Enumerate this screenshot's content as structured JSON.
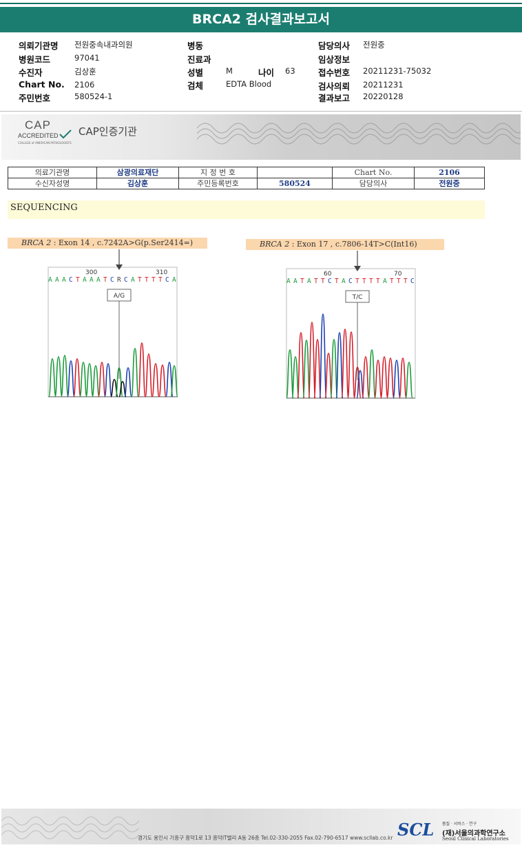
{
  "header": {
    "title": "BRCA2 검사결과보고서"
  },
  "info": {
    "institution_label": "의뢰기관명",
    "institution_value": "전원중속내과의원",
    "hospital_code_label": "병원코드",
    "hospital_code_value": "97041",
    "patient_label": "수진자",
    "patient_value": "김상훈",
    "chart_no_label": "Chart No.",
    "chart_no_value": "2106",
    "resident_no_label": "주민번호",
    "resident_no_value": "580524-1",
    "ward_label": "병동",
    "dept_label": "진료과",
    "sex_label": "성별",
    "sex_value": "M",
    "age_label": "나이",
    "age_value": "63",
    "specimen_label": "검체",
    "specimen_value": "EDTA Blood",
    "doctor_label": "담당의사",
    "doctor_value": "전원중",
    "clinical_label": "임상정보",
    "receipt_label": "접수번호",
    "receipt_value": "20211231-75032",
    "request_label": "검사의뢰",
    "request_value": "20211231",
    "report_label": "결과보고",
    "report_value": "20220128"
  },
  "cap": {
    "logo_text": "CAP",
    "accredited": "ACCREDITED",
    "college": "COLLEGE of AMERICAN PATHOLOGISTS",
    "title": "CAP인증기관"
  },
  "patient_table": {
    "r1": [
      "의료기관명",
      "삼광의료재단",
      "지 정 번 호",
      "",
      "Chart No.",
      "2106"
    ],
    "r2": [
      "수신자성명",
      "김상훈",
      "주민등록번호",
      "580524",
      "담당의사",
      "전원중"
    ]
  },
  "section": {
    "sequencing": "SEQUENCING"
  },
  "variants": [
    {
      "gene": "BRCA 2",
      "desc": " : Exon 14 , c.7242A>G(p.Ser2414=)",
      "pos_left": "300",
      "pos_right": "310",
      "bases": "AAACTAAATCRCATTTTCA",
      "call": "A/G"
    },
    {
      "gene": "BRCA 2",
      "desc": " : Exon 17 , c.7806-14T>C(Int16)",
      "pos_left": "60",
      "pos_right": "70",
      "bases": "AATATTCTACTTTTATTTC",
      "call": "T/C"
    }
  ],
  "colors": {
    "header": "#1b7d70",
    "A": "#1a9a3a",
    "C": "#1b3fb0",
    "G": "#111111",
    "T": "#d21f2a"
  },
  "footer": {
    "address": "경기도 용인시 기흥구 흥덕1로 13 흥덕IT밸리 A동 26층  Tel.02-330-2055  Fax.02-790-6517  www.scllab.co.kr",
    "logo": "SCL",
    "motto": "품질 · 서비스 · 연구",
    "org": "(재)서울의과학연구소",
    "org_en": "Seoul Clinical Laboratories"
  }
}
